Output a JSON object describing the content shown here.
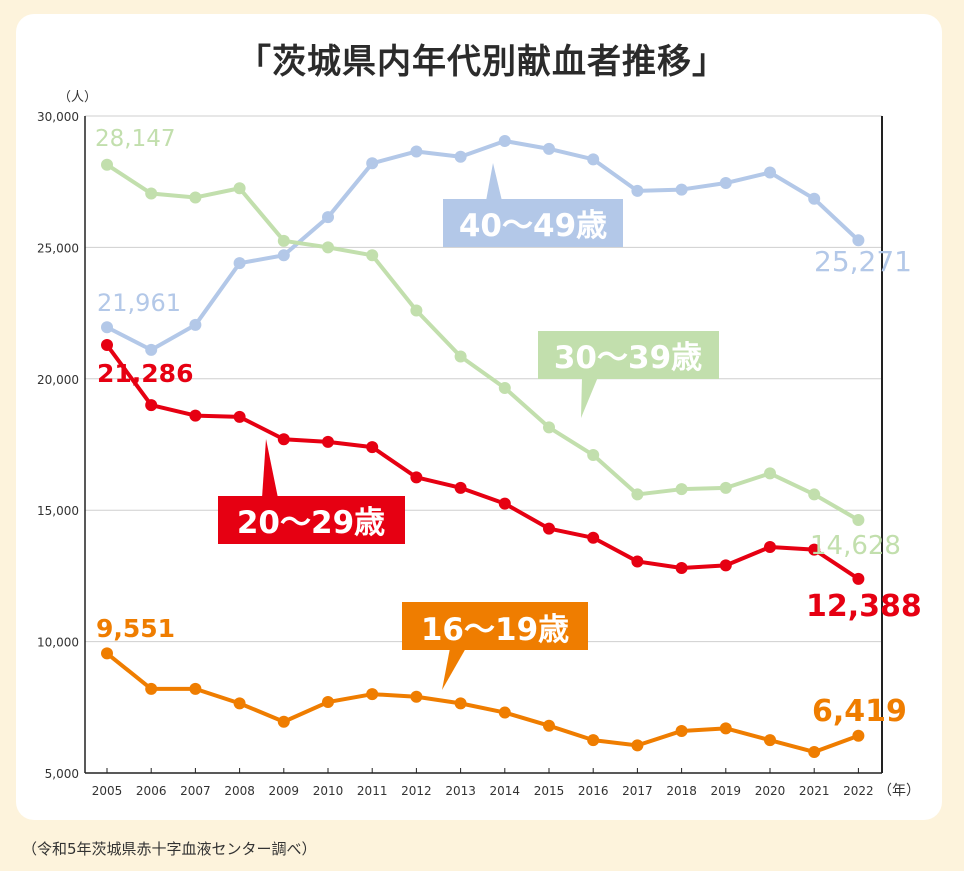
{
  "title": "「茨城県内年代別献血者推移」",
  "source": "（令和5年茨城県赤十字血液センター調べ）",
  "colors": {
    "age_40_49": "#b3c8e8",
    "age_30_39": "#c2dfad",
    "age_20_29": "#e60012",
    "age_16_19": "#ef7d00"
  },
  "chart_data": {
    "type": "line",
    "ylabel": "（人）",
    "xlabel": "（年）",
    "ylim": [
      5000,
      30000
    ],
    "yticks": [
      "5,000",
      "10,000",
      "15,000",
      "20,000",
      "25,000",
      "30,000"
    ],
    "x": [
      "2005",
      "2006",
      "2007",
      "2008",
      "2009",
      "2010",
      "2011",
      "2012",
      "2013",
      "2014",
      "2015",
      "2016",
      "2017",
      "2018",
      "2019",
      "2020",
      "2021",
      "2022"
    ],
    "grid": true,
    "series": [
      {
        "name": "40〜49歳",
        "key": "age_40_49",
        "values": [
          21961,
          21100,
          22050,
          24400,
          24700,
          26150,
          28200,
          28650,
          28450,
          29050,
          28750,
          28350,
          27150,
          27200,
          27450,
          27850,
          26850,
          25271
        ],
        "start_label": "21,961",
        "end_label": "25,271"
      },
      {
        "name": "30〜39歳",
        "key": "age_30_39",
        "values": [
          28147,
          27050,
          26900,
          27250,
          25250,
          25000,
          24700,
          22600,
          20850,
          19650,
          18150,
          17100,
          15600,
          15800,
          15850,
          16400,
          15600,
          14628
        ],
        "start_label": "28,147",
        "end_label": "14,628"
      },
      {
        "name": "20〜29歳",
        "key": "age_20_29",
        "values": [
          21286,
          19000,
          18600,
          18550,
          17700,
          17600,
          17400,
          16250,
          15850,
          15250,
          14300,
          13950,
          13050,
          12800,
          12900,
          13600,
          13500,
          12388
        ],
        "start_label": "21,286",
        "end_label": "12,388"
      },
      {
        "name": "16〜19歳",
        "key": "age_16_19",
        "values": [
          9551,
          8200,
          8200,
          7650,
          6950,
          7700,
          8000,
          7900,
          7650,
          7300,
          6800,
          6250,
          6050,
          6600,
          6700,
          6250,
          5800,
          6419
        ],
        "start_label": "9,551",
        "end_label": "6,419"
      }
    ]
  }
}
